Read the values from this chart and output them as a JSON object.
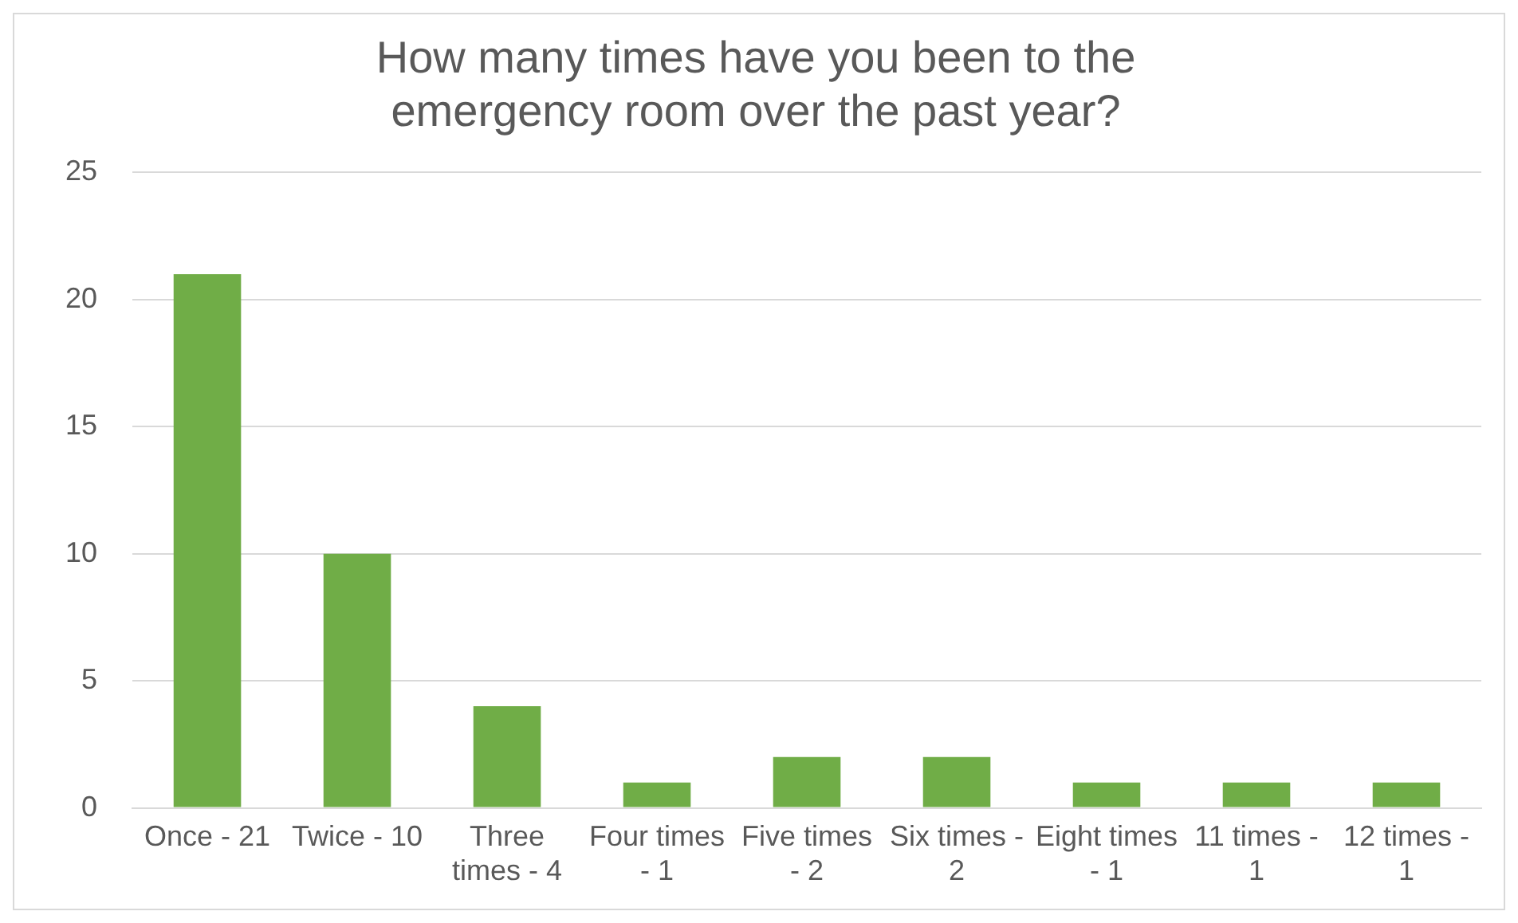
{
  "chart_data": {
    "type": "bar",
    "title": "How many times have you been to the emergency room over the past year?",
    "categories": [
      "Once - 21",
      "Twice - 10",
      "Three times - 4",
      "Four times - 1",
      "Five times - 2",
      "Six times - 2",
      "Eight times - 1",
      "11 times - 1",
      "12 times - 1"
    ],
    "values": [
      21,
      10,
      4,
      1,
      2,
      2,
      1,
      1,
      1
    ],
    "color": "#70ad47",
    "ylim": [
      0,
      25
    ],
    "yticks": [
      0,
      5,
      10,
      15,
      20,
      25
    ],
    "grid": "y",
    "legend": false
  }
}
